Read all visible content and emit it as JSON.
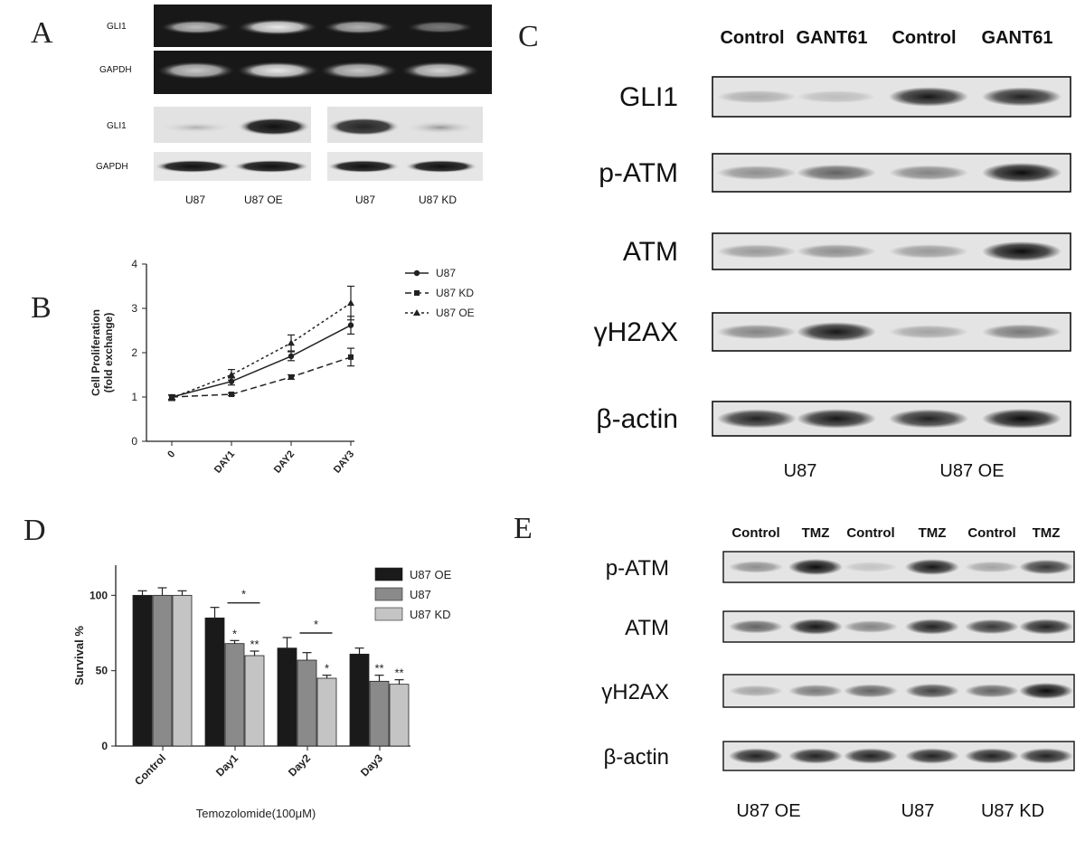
{
  "panels": {
    "A": {
      "label": "A",
      "gel_rows": [
        "GLI1",
        "GAPDH"
      ],
      "wb_rows": [
        "GLI1",
        "GAPDH"
      ],
      "lanes": [
        "U87",
        "U87 OE",
        "U87",
        "U87 KD"
      ]
    },
    "B": {
      "label": "B"
    },
    "C": {
      "label": "C",
      "columns": [
        "Control",
        "GANT61",
        "Control",
        "GANT61"
      ],
      "rows": [
        "GLI1",
        "p-ATM",
        "ATM",
        "γH2AX",
        "β-actin"
      ],
      "groups": [
        "U87",
        "U87 OE"
      ]
    },
    "D": {
      "label": "D"
    },
    "E": {
      "label": "E",
      "columns": [
        "Control",
        "TMZ",
        "Control",
        "TMZ",
        "Control",
        "TMZ"
      ],
      "rows": [
        "p-ATM",
        "ATM",
        "γH2AX",
        "β-actin"
      ],
      "groups": [
        "U87 OE",
        "U87",
        "U87 KD"
      ]
    }
  },
  "chart_data": [
    {
      "type": "line",
      "panel": "B",
      "x": [
        "0",
        "DAY1",
        "DAY2",
        "DAY3"
      ],
      "ylabel": "Cell Proliferation\n(fold exchange)",
      "ylabel_lines": [
        "Cell Proliferation",
        "(fold exchange)"
      ],
      "ylim": [
        0,
        4
      ],
      "yticks": [
        "0",
        "1",
        "2",
        "3",
        "4"
      ],
      "legend": "top-right",
      "series": [
        {
          "name": "U87",
          "values": [
            1.0,
            1.35,
            1.92,
            2.62
          ],
          "errors": [
            0.05,
            0.08,
            0.1,
            0.2
          ],
          "style": "solid",
          "marker": "circle"
        },
        {
          "name": "U87 KD",
          "values": [
            1.0,
            1.06,
            1.45,
            1.9
          ],
          "errors": [
            0.05,
            0.03,
            0.05,
            0.2
          ],
          "style": "dashed",
          "marker": "square"
        },
        {
          "name": "U87 OE",
          "values": [
            0.98,
            1.5,
            2.22,
            3.12
          ],
          "errors": [
            0.06,
            0.12,
            0.18,
            0.38
          ],
          "style": "dotted",
          "marker": "triangle"
        }
      ]
    },
    {
      "type": "bar",
      "panel": "D",
      "categories": [
        "Control",
        "Day1",
        "Day2",
        "Day3"
      ],
      "xlabel": "Temozolomide(100μM)",
      "ylabel": "Survival %",
      "ylim": [
        0,
        120
      ],
      "yticks": [
        "0",
        "50",
        "100"
      ],
      "legend": "top-right",
      "series": [
        {
          "name": "U87 OE",
          "color": "#1a1a1a",
          "values": [
            100,
            85,
            65,
            61
          ],
          "errors": [
            3,
            7,
            7,
            4
          ],
          "stars": [
            "",
            "",
            "",
            ""
          ]
        },
        {
          "name": "U87",
          "color": "#8a8a8a",
          "values": [
            100,
            68,
            57,
            43
          ],
          "errors": [
            5,
            2,
            5,
            4
          ],
          "stars": [
            "",
            "*",
            "",
            "**"
          ]
        },
        {
          "name": "U87 KD",
          "color": "#c4c4c4",
          "values": [
            100,
            60,
            45,
            41
          ],
          "errors": [
            3,
            3,
            2,
            3
          ],
          "stars": [
            "",
            "**",
            "*",
            "**"
          ]
        }
      ],
      "brackets": [
        {
          "category": "Day1",
          "label": "*"
        },
        {
          "category": "Day2",
          "label": "*"
        }
      ]
    }
  ]
}
